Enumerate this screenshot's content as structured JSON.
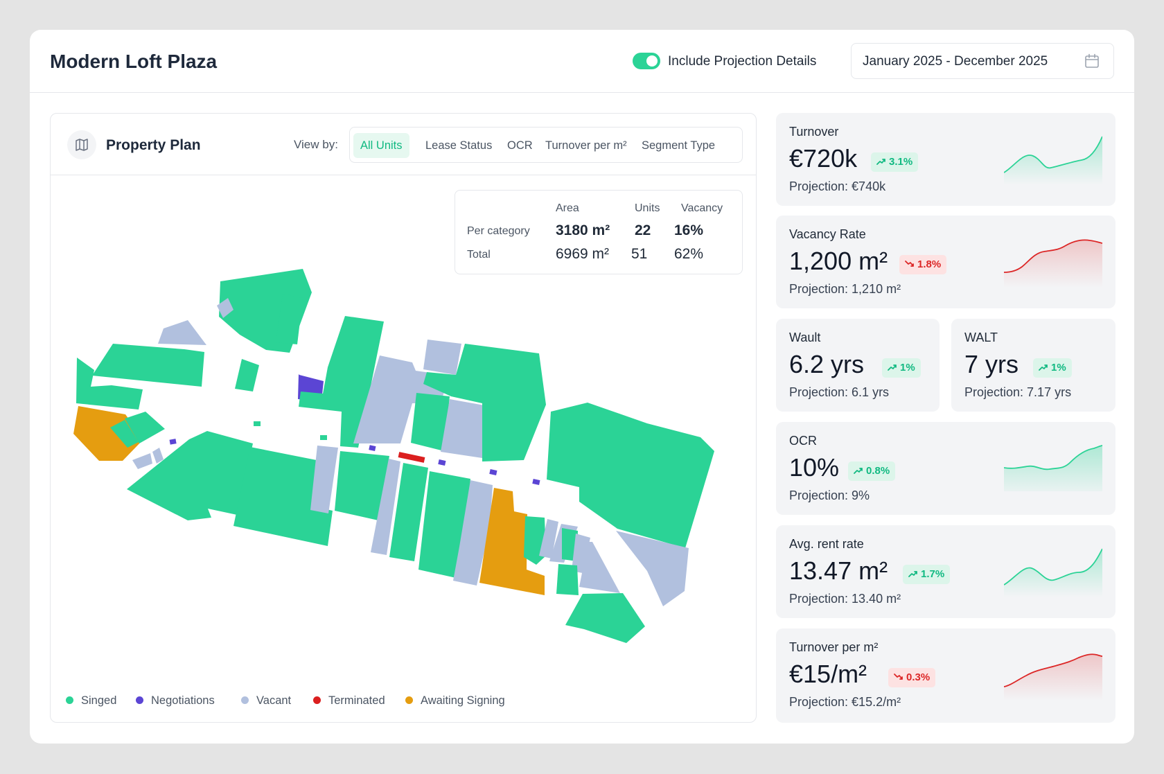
{
  "header": {
    "title": "Modern Loft Plaza",
    "projection_toggle_label": "Include Projection Details",
    "projection_toggle_on": true,
    "date_range": "January 2025 - December 2025"
  },
  "plan": {
    "title": "Property Plan",
    "view_by_label": "View by:",
    "tabs": [
      {
        "label": "All Units",
        "active": true
      },
      {
        "label": "Lease Status",
        "active": false
      },
      {
        "label": "OCR",
        "active": false
      },
      {
        "label": "Turnover per m²",
        "active": false
      },
      {
        "label": "Segment Type",
        "active": false
      }
    ],
    "stats": {
      "headers": [
        "Area",
        "Units",
        "Vacancy"
      ],
      "rows": [
        {
          "label": "Per category",
          "area": "3180 m²",
          "units": "22",
          "vacancy": "16%"
        },
        {
          "label": "Total",
          "area": "6969 m²",
          "units": "51",
          "vacancy": "62%"
        }
      ]
    },
    "legend": [
      {
        "label": "Singed",
        "color": "#2bd396"
      },
      {
        "label": "Negotiations",
        "color": "#5b45d4"
      },
      {
        "label": "Vacant",
        "color": "#b1c0de"
      },
      {
        "label": "Terminated",
        "color": "#db1f1f"
      },
      {
        "label": "Awaiting Signing",
        "color": "#e59d10"
      }
    ]
  },
  "kpis": {
    "turnover": {
      "label": "Turnover",
      "value": "€720k",
      "change": "3.1%",
      "trend": "up",
      "projection": "Projection: €740k"
    },
    "vacancy": {
      "label": "Vacancy Rate",
      "value": "1,200 m²",
      "change": "1.8%",
      "trend": "down",
      "projection": "Projection: 1,210 m²"
    },
    "wault": {
      "label": "Wault",
      "value": "6.2 yrs",
      "change": "1%",
      "trend": "up",
      "projection": "Projection: 6.1 yrs"
    },
    "walt": {
      "label": "WALT",
      "value": "7 yrs",
      "change": "1%",
      "trend": "up",
      "projection": "Projection: 7.17 yrs"
    },
    "ocr": {
      "label": "OCR",
      "value": "10%",
      "change": "0.8%",
      "trend": "up",
      "projection": "Projection: 9%"
    },
    "rent": {
      "label": "Avg. rent rate",
      "value": "13.47 m²",
      "change": "1.7%",
      "trend": "up",
      "projection": "Projection: 13.40 m²"
    },
    "turnover_m2": {
      "label": "Turnover per m²",
      "value": "€15/m²",
      "change": "0.3%",
      "trend": "down",
      "projection": "Projection: €15.2/m²"
    }
  },
  "colors": {
    "signed": "#2bd396",
    "negotiations": "#5b45d4",
    "vacant": "#b1c0de",
    "terminated": "#db1f1f",
    "awaiting": "#e59d10",
    "up": "#10b981",
    "down": "#dc2626"
  }
}
